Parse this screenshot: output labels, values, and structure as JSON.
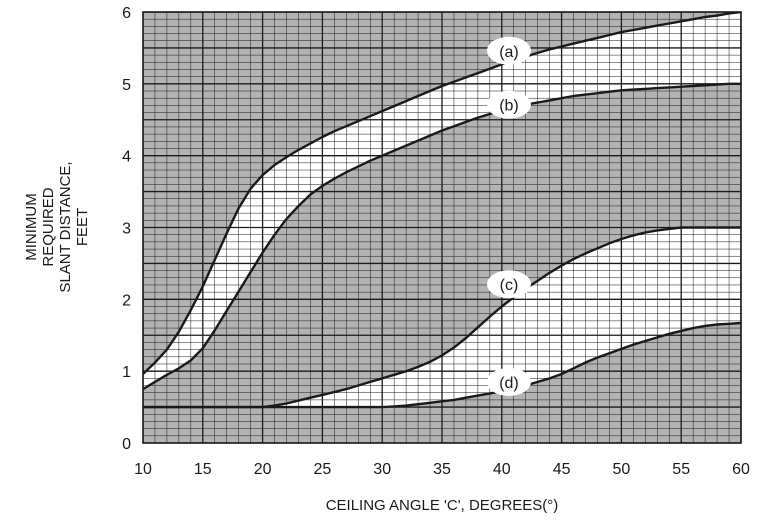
{
  "chart_data": {
    "type": "line",
    "xlabel": "CEILING ANGLE 'C', DEGREES(°)",
    "ylabel_lines": [
      "MINIMUM",
      "REQUIRED",
      "SLANT DISTANCE,",
      "FEET"
    ],
    "xlim": [
      10,
      60
    ],
    "ylim": [
      0,
      6
    ],
    "x_ticks": [
      10,
      15,
      20,
      25,
      30,
      35,
      40,
      45,
      50,
      55,
      60
    ],
    "y_ticks": [
      0,
      1,
      2,
      3,
      4,
      5,
      6
    ],
    "grid": true,
    "shaded_regions": [
      {
        "between": [
          "(a)",
          "top"
        ],
        "color": "#b3b3b3"
      },
      {
        "between": [
          "(b)",
          "(c)"
        ],
        "color": "#b3b3b3"
      },
      {
        "between": [
          "bottom",
          "(d)"
        ],
        "color": "#b3b3b3"
      }
    ],
    "series": [
      {
        "name": "(a)",
        "label_at": [
          40.6,
          5.46
        ],
        "x": [
          10,
          11,
          12,
          13,
          14,
          15,
          16,
          17,
          18,
          19,
          20,
          21,
          22,
          23,
          24,
          25,
          26,
          27,
          28,
          29,
          30,
          31,
          32,
          33,
          34,
          35,
          36,
          37,
          38,
          39,
          40,
          41,
          42,
          43,
          44,
          45,
          46,
          47,
          48,
          49,
          50,
          51,
          52,
          53,
          54,
          55,
          56,
          57,
          58,
          59,
          60
        ],
        "values": [
          0.96,
          1.12,
          1.3,
          1.55,
          1.85,
          2.18,
          2.55,
          2.92,
          3.27,
          3.54,
          3.73,
          3.87,
          3.98,
          4.08,
          4.17,
          4.26,
          4.34,
          4.41,
          4.48,
          4.55,
          4.62,
          4.69,
          4.76,
          4.83,
          4.9,
          4.97,
          5.03,
          5.09,
          5.15,
          5.21,
          5.27,
          5.33,
          5.38,
          5.43,
          5.48,
          5.52,
          5.56,
          5.6,
          5.64,
          5.68,
          5.72,
          5.75,
          5.78,
          5.81,
          5.84,
          5.87,
          5.9,
          5.93,
          5.95,
          5.98,
          6.0
        ]
      },
      {
        "name": "(b)",
        "label_at": [
          40.6,
          4.71
        ],
        "x": [
          10,
          11,
          12,
          13,
          14,
          15,
          16,
          17,
          18,
          19,
          20,
          21,
          22,
          23,
          24,
          25,
          26,
          27,
          28,
          29,
          30,
          31,
          32,
          33,
          34,
          35,
          36,
          37,
          38,
          39,
          40,
          41,
          42,
          43,
          44,
          45,
          46,
          47,
          48,
          49,
          50,
          51,
          52,
          53,
          54,
          55,
          56,
          57,
          58,
          59,
          60
        ],
        "values": [
          0.75,
          0.85,
          0.95,
          1.04,
          1.15,
          1.32,
          1.57,
          1.84,
          2.11,
          2.38,
          2.65,
          2.9,
          3.12,
          3.3,
          3.46,
          3.58,
          3.68,
          3.77,
          3.85,
          3.93,
          4.0,
          4.07,
          4.14,
          4.21,
          4.28,
          4.35,
          4.41,
          4.47,
          4.53,
          4.58,
          4.63,
          4.67,
          4.71,
          4.74,
          4.77,
          4.8,
          4.83,
          4.85,
          4.87,
          4.89,
          4.91,
          4.92,
          4.93,
          4.94,
          4.95,
          4.96,
          4.97,
          4.98,
          4.99,
          5.0,
          5.0
        ]
      },
      {
        "name": "(c)",
        "label_at": [
          40.6,
          2.21
        ],
        "x": [
          10,
          20,
          21,
          22,
          23,
          24,
          25,
          26,
          27,
          28,
          29,
          30,
          31,
          32,
          33,
          34,
          35,
          36,
          37,
          38,
          39,
          40,
          41,
          42,
          43,
          44,
          45,
          46,
          47,
          48,
          49,
          50,
          51,
          52,
          53,
          54,
          55,
          56,
          57,
          58,
          59,
          60
        ],
        "values": [
          0.5,
          0.5,
          0.52,
          0.55,
          0.59,
          0.63,
          0.67,
          0.71,
          0.75,
          0.8,
          0.85,
          0.9,
          0.95,
          1.0,
          1.06,
          1.13,
          1.22,
          1.33,
          1.46,
          1.61,
          1.76,
          1.9,
          2.03,
          2.15,
          2.26,
          2.37,
          2.47,
          2.56,
          2.64,
          2.71,
          2.78,
          2.84,
          2.89,
          2.93,
          2.96,
          2.98,
          3.0,
          3.0,
          3.0,
          3.0,
          3.0,
          3.0
        ]
      },
      {
        "name": "(d)",
        "label_at": [
          40.6,
          0.85
        ],
        "x": [
          10,
          30,
          31,
          32,
          33,
          34,
          35,
          36,
          37,
          38,
          39,
          40,
          41,
          42,
          43,
          44,
          45,
          46,
          47,
          48,
          49,
          50,
          51,
          52,
          53,
          54,
          55,
          56,
          57,
          58,
          59,
          60
        ],
        "values": [
          0.5,
          0.5,
          0.51,
          0.52,
          0.54,
          0.56,
          0.58,
          0.6,
          0.63,
          0.66,
          0.69,
          0.72,
          0.76,
          0.8,
          0.85,
          0.9,
          0.96,
          1.04,
          1.12,
          1.19,
          1.25,
          1.31,
          1.37,
          1.42,
          1.47,
          1.52,
          1.56,
          1.6,
          1.63,
          1.65,
          1.66,
          1.67
        ]
      }
    ]
  }
}
